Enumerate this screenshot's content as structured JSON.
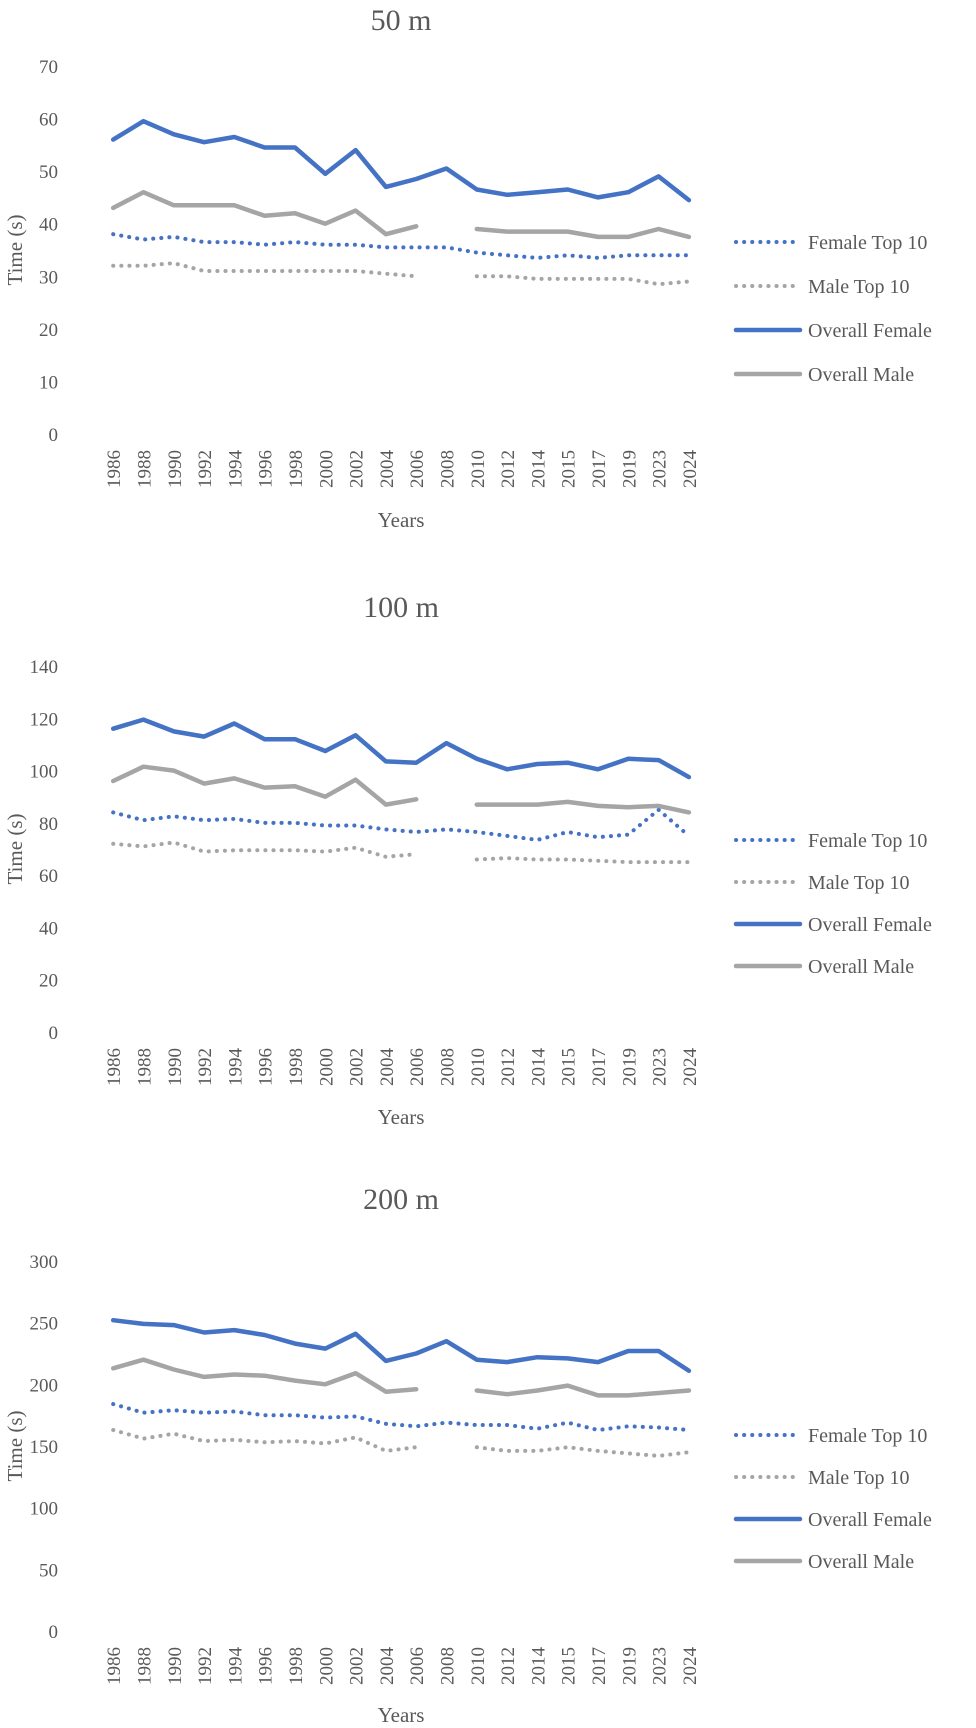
{
  "chart_data": [
    {
      "type": "line",
      "title": "50 m",
      "xlabel": "Years",
      "ylabel": "Time (s)",
      "ylim": [
        0,
        70
      ],
      "yticks": [
        0,
        10,
        20,
        30,
        40,
        50,
        60,
        70
      ],
      "categories": [
        "1986",
        "1988",
        "1990",
        "1992",
        "1994",
        "1996",
        "1998",
        "2000",
        "2002",
        "2004",
        "2006",
        "2008",
        "2010",
        "2012",
        "2014",
        "2015",
        "2017",
        "2019",
        "2023",
        "2024"
      ],
      "series": [
        {
          "name": "Female Top 10",
          "color": "#4472c4",
          "style": "dotted",
          "values": [
            38,
            37,
            37.5,
            36.5,
            36.5,
            36,
            36.5,
            36,
            36,
            35.5,
            35.5,
            35.5,
            34.5,
            34,
            33.5,
            34,
            33.5,
            34,
            34,
            34
          ]
        },
        {
          "name": "Male Top 10",
          "color": "#a5a5a5",
          "style": "dotted",
          "values": [
            32,
            32,
            32.5,
            31,
            31,
            31,
            31,
            31,
            31,
            30.5,
            30,
            null,
            30,
            30,
            29.5,
            29.5,
            29.5,
            29.5,
            28.5,
            29
          ]
        },
        {
          "name": "Overall Female",
          "color": "#4472c4",
          "style": "solid",
          "values": [
            56,
            59.5,
            57,
            55.5,
            56.5,
            54.5,
            54.5,
            49.5,
            54,
            47,
            48.5,
            50.5,
            46.5,
            45.5,
            46,
            46.5,
            45,
            46,
            49,
            44.5
          ]
        },
        {
          "name": "Overall Male",
          "color": "#a5a5a5",
          "style": "solid",
          "values": [
            43,
            46,
            43.5,
            43.5,
            43.5,
            41.5,
            42,
            40,
            42.5,
            38,
            39.5,
            null,
            39,
            38.5,
            38.5,
            38.5,
            37.5,
            37.5,
            39,
            37.5
          ]
        }
      ]
    },
    {
      "type": "line",
      "title": "100 m",
      "xlabel": "Years",
      "ylabel": "Time (s)",
      "ylim": [
        0,
        140
      ],
      "yticks": [
        0,
        20,
        40,
        60,
        80,
        100,
        120,
        140
      ],
      "categories": [
        "1986",
        "1988",
        "1990",
        "1992",
        "1994",
        "1996",
        "1998",
        "2000",
        "2002",
        "2004",
        "2006",
        "2008",
        "2010",
        "2012",
        "2014",
        "2015",
        "2017",
        "2019",
        "2023",
        "2024"
      ],
      "series": [
        {
          "name": "Female Top 10",
          "color": "#4472c4",
          "style": "dotted",
          "values": [
            84,
            81,
            82.5,
            81,
            81.5,
            80,
            80,
            79,
            79,
            77.5,
            76.5,
            77.5,
            76.5,
            75,
            73.5,
            76.5,
            74.5,
            75.5,
            85,
            75
          ]
        },
        {
          "name": "Male Top 10",
          "color": "#a5a5a5",
          "style": "dotted",
          "values": [
            72,
            71,
            72.5,
            69,
            69.5,
            69.5,
            69.5,
            69,
            70.5,
            67,
            68,
            null,
            66,
            66.5,
            66,
            66,
            65.5,
            65,
            65,
            65
          ]
        },
        {
          "name": "Overall Female",
          "color": "#4472c4",
          "style": "solid",
          "values": [
            116,
            119.5,
            115,
            113,
            118,
            112,
            112,
            107.5,
            113.5,
            103.5,
            103,
            110.5,
            104.5,
            100.5,
            102.5,
            103,
            100.5,
            104.5,
            104,
            97.5
          ]
        },
        {
          "name": "Overall Male",
          "color": "#a5a5a5",
          "style": "solid",
          "values": [
            96,
            101.5,
            100,
            95,
            97,
            93.5,
            94,
            90,
            96.5,
            87,
            89,
            null,
            87,
            87,
            87,
            88,
            86.5,
            86,
            86.5,
            84
          ]
        }
      ]
    },
    {
      "type": "line",
      "title": "200 m",
      "xlabel": "Years",
      "ylabel": "Time (s)",
      "ylim": [
        0,
        300
      ],
      "yticks": [
        0,
        50,
        100,
        150,
        200,
        250,
        300
      ],
      "categories": [
        "1986",
        "1988",
        "1990",
        "1992",
        "1994",
        "1996",
        "1998",
        "2000",
        "2002",
        "2004",
        "2006",
        "2008",
        "2010",
        "2012",
        "2014",
        "2015",
        "2017",
        "2019",
        "2023",
        "2024"
      ],
      "series": [
        {
          "name": "Female Top 10",
          "color": "#4472c4",
          "style": "dotted",
          "values": [
            184,
            177,
            179,
            177,
            178,
            175,
            175,
            173,
            174,
            168,
            166,
            169,
            167,
            167,
            164,
            169,
            163,
            166,
            165,
            163
          ]
        },
        {
          "name": "Male Top 10",
          "color": "#a5a5a5",
          "style": "dotted",
          "values": [
            163,
            156,
            160,
            154,
            155,
            153,
            154,
            152,
            157,
            146,
            149,
            null,
            149,
            146,
            146,
            149,
            146,
            144,
            142,
            145
          ]
        },
        {
          "name": "Overall Female",
          "color": "#4472c4",
          "style": "solid",
          "values": [
            252,
            249,
            248,
            242,
            244,
            240,
            233,
            229,
            241,
            219,
            225,
            235,
            220,
            218,
            222,
            221,
            218,
            227,
            227,
            211
          ]
        },
        {
          "name": "Overall Male",
          "color": "#a5a5a5",
          "style": "solid",
          "values": [
            213,
            220,
            212,
            206,
            208,
            207,
            203,
            200,
            209,
            194,
            196,
            null,
            195,
            192,
            195,
            199,
            191,
            191,
            193,
            195
          ]
        }
      ]
    }
  ]
}
